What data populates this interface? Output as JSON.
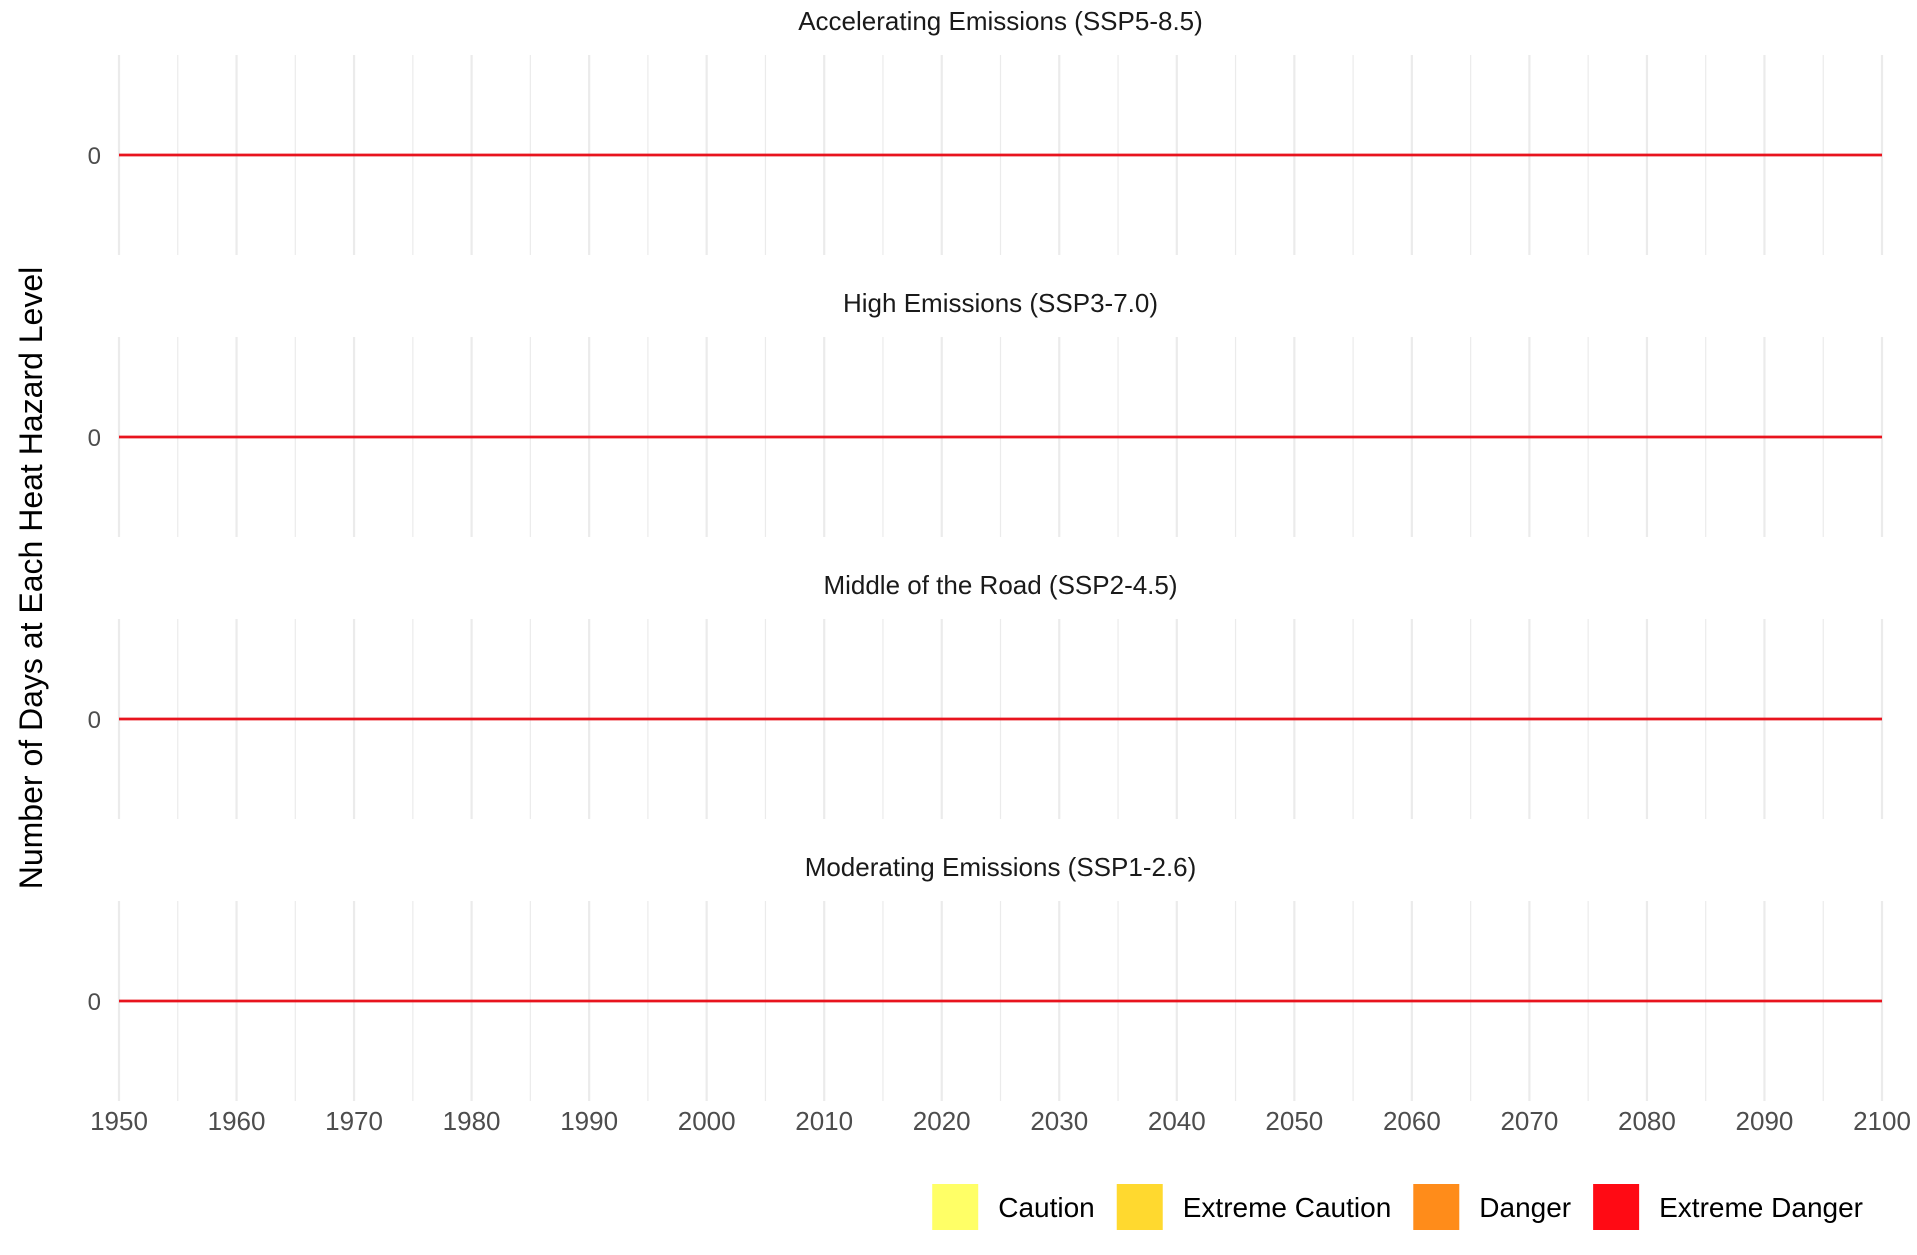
{
  "chart_data": {
    "type": "line",
    "ylabel": "Number of Days at Each Heat Hazard Level",
    "xlabel": "",
    "xlim": [
      1950,
      2100
    ],
    "x_ticks": [
      1950,
      1960,
      1970,
      1980,
      1990,
      2000,
      2010,
      2020,
      2030,
      2040,
      2050,
      2060,
      2070,
      2080,
      2090,
      2100
    ],
    "x_tick_labels": [
      "1950",
      "1960",
      "1970",
      "1980",
      "1990",
      "2000",
      "2010",
      "2020",
      "2030",
      "2040",
      "2050",
      "2060",
      "2070",
      "2080",
      "2090",
      "2100"
    ],
    "y_ticks": [
      0
    ],
    "y_tick_labels": [
      "0"
    ],
    "grid": true,
    "legend": {
      "placement": "bottom-right",
      "entries": [
        {
          "label": "Caution",
          "color": "#FFFF66"
        },
        {
          "label": "Extreme Caution",
          "color": "#FFD92F"
        },
        {
          "label": "Danger",
          "color": "#FF8C1A"
        },
        {
          "label": "Extreme Danger",
          "color": "#FF0A14"
        }
      ]
    },
    "panels": [
      {
        "title": "Accelerating Emissions (SSP5-8.5)",
        "series": [
          {
            "color": "#E8141E",
            "x": [
              1950,
              2100
            ],
            "y": [
              0,
              0
            ]
          }
        ]
      },
      {
        "title": "High Emissions (SSP3-7.0)",
        "series": [
          {
            "color": "#E8141E",
            "x": [
              1950,
              2100
            ],
            "y": [
              0,
              0
            ]
          }
        ]
      },
      {
        "title": "Middle of the Road (SSP2-4.5)",
        "series": [
          {
            "color": "#E8141E",
            "x": [
              1950,
              2100
            ],
            "y": [
              0,
              0
            ]
          }
        ]
      },
      {
        "title": "Moderating Emissions (SSP1-2.6)",
        "series": [
          {
            "color": "#E8141E",
            "x": [
              1950,
              2100
            ],
            "y": [
              0,
              0
            ]
          }
        ]
      }
    ]
  }
}
